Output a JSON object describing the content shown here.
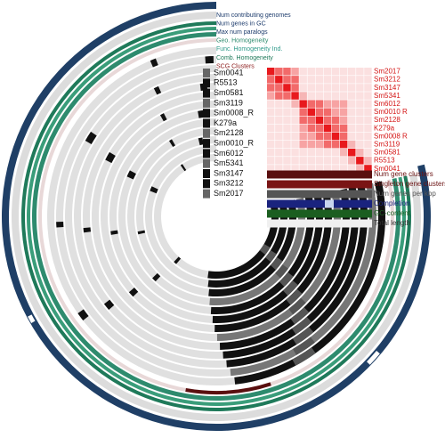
{
  "layers": {
    "top": [
      "Num contributing genomes",
      "Num genes in GC",
      "Max num paralogs",
      "Geo. Homogeneity",
      "Func. Homogeneity Ind.",
      "Comb. Homogeneity",
      "SCG Clusters"
    ],
    "bottom": [
      "Num gene clusters",
      "Singleton gene clusters",
      "Num genes per kbp",
      "Completion",
      "GC-content",
      "Total length"
    ]
  },
  "genomes": [
    "Sm0041",
    "R5513",
    "Sm0581",
    "Sm3119",
    "Sm0008_R",
    "K279a",
    "Sm2128",
    "Sm0010_R",
    "Sm6012",
    "Sm5341",
    "Sm3147",
    "Sm3212",
    "Sm2017"
  ],
  "heatmap_labels": [
    "Sm2017",
    "Sm3212",
    "Sm3147",
    "Sm5341",
    "Sm6012",
    "Sm0010 R",
    "Sm2128",
    "K279a",
    "Sm0008 R",
    "Sm3119",
    "Sm0581",
    "R5513",
    "Sm0041"
  ]
}
